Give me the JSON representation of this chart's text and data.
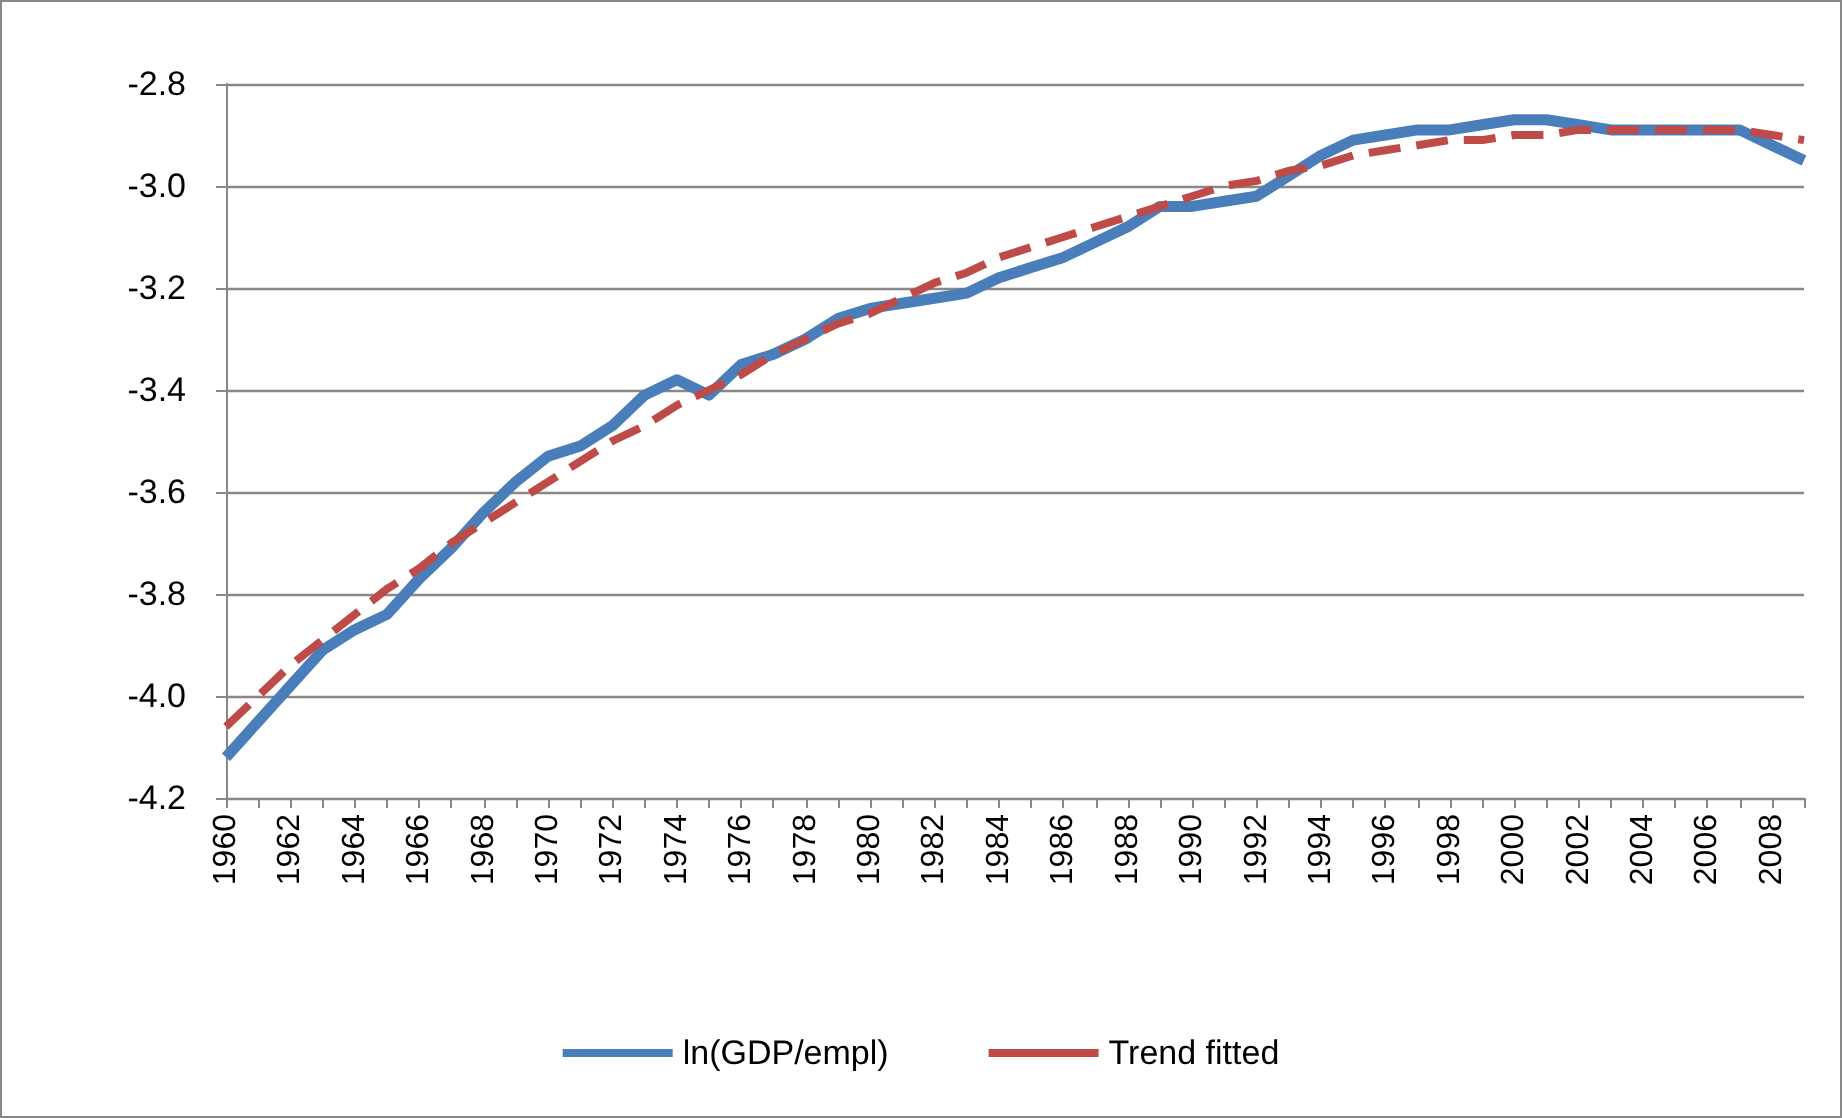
{
  "chart_data": {
    "type": "line",
    "categories": [
      "1960",
      null,
      "1962",
      null,
      "1964",
      null,
      "1966",
      null,
      "1968",
      null,
      "1970",
      null,
      "1972",
      null,
      "1974",
      null,
      "1976",
      null,
      "1978",
      null,
      "1980",
      null,
      "1982",
      null,
      "1984",
      null,
      "1986",
      null,
      "1988",
      null,
      "1990",
      null,
      "1992",
      null,
      "1994",
      null,
      "1996",
      null,
      "1998",
      null,
      "2000",
      null,
      "2002",
      null,
      "2004",
      null,
      "2006",
      null,
      "2008",
      null
    ],
    "series": [
      {
        "name": "ln(GDP/empl)",
        "color": "#4a7ebb",
        "line_style": "solid",
        "values": [
          -4.12,
          -4.05,
          -3.98,
          -3.91,
          -3.87,
          -3.84,
          -3.77,
          -3.71,
          -3.64,
          -3.58,
          -3.53,
          -3.51,
          -3.47,
          -3.41,
          -3.38,
          -3.41,
          -3.35,
          -3.33,
          -3.3,
          -3.26,
          -3.24,
          -3.23,
          -3.22,
          -3.21,
          -3.18,
          -3.16,
          -3.14,
          -3.11,
          -3.08,
          -3.04,
          -3.04,
          -3.03,
          -3.02,
          -2.98,
          -2.94,
          -2.91,
          -2.9,
          -2.89,
          -2.89,
          -2.88,
          -2.87,
          -2.87,
          -2.88,
          -2.89,
          -2.89,
          -2.89,
          -2.89,
          -2.89,
          -2.92,
          -2.95
        ]
      },
      {
        "name": "Trend fitted",
        "color": "#be4b48",
        "line_style": "dashed",
        "values": [
          -4.06,
          -4.0,
          -3.94,
          -3.89,
          -3.84,
          -3.79,
          -3.75,
          -3.7,
          -3.66,
          -3.62,
          -3.58,
          -3.54,
          -3.5,
          -3.47,
          -3.43,
          -3.4,
          -3.37,
          -3.33,
          -3.3,
          -3.27,
          -3.25,
          -3.22,
          -3.19,
          -3.17,
          -3.14,
          -3.12,
          -3.1,
          -3.08,
          -3.06,
          -3.04,
          -3.02,
          -3.0,
          -2.99,
          -2.97,
          -2.96,
          -2.94,
          -2.93,
          -2.92,
          -2.91,
          -2.91,
          -2.9,
          -2.9,
          -2.89,
          -2.89,
          -2.89,
          -2.89,
          -2.89,
          -2.89,
          -2.9,
          -2.91
        ]
      }
    ],
    "ylim": [
      -4.2,
      -2.8
    ],
    "yticks": [
      {
        "value": -4.2,
        "label": "-4.2"
      },
      {
        "value": -4.0,
        "label": "-4.0"
      },
      {
        "value": -3.8,
        "label": "-3.8"
      },
      {
        "value": -3.6,
        "label": "-3.6"
      },
      {
        "value": -3.4,
        "label": "-3.4"
      },
      {
        "value": -3.2,
        "label": "-3.2"
      },
      {
        "value": -3.0,
        "label": "-3.0"
      },
      {
        "value": -2.8,
        "label": "-2.8"
      }
    ],
    "grid": "y",
    "legend": "bottom",
    "marker": "none"
  }
}
